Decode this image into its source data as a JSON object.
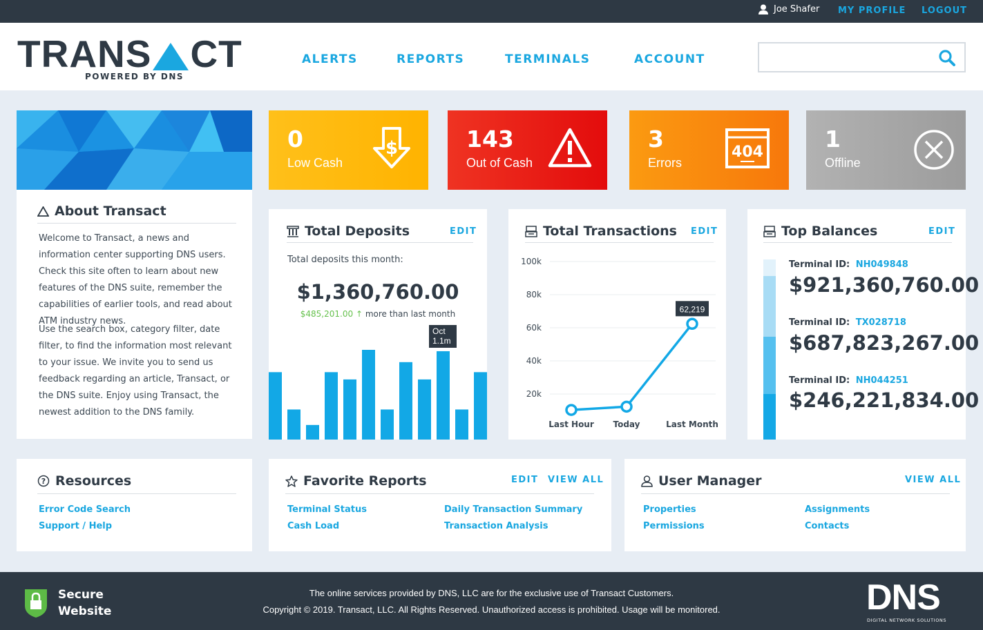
{
  "topbar": {
    "user": "Joe Shafer",
    "profile": "MY PROFILE",
    "logout": "LOGOUT"
  },
  "logo": {
    "word": "TRANSACT",
    "sub": "POWERED BY DNS"
  },
  "nav": [
    "ALERTS",
    "REPORTS",
    "TERMINALS",
    "ACCOUNT"
  ],
  "search": {
    "placeholder": ""
  },
  "stats": [
    {
      "value": "0",
      "label": "Low Cash",
      "color": "#ffbd16",
      "icon": "cash-down-icon"
    },
    {
      "value": "143",
      "label": "Out of Cash",
      "color": "#ee2a1e",
      "icon": "warning-icon"
    },
    {
      "value": "3",
      "label": "Errors",
      "color": "#f98c0e",
      "icon": "error-404-icon"
    },
    {
      "value": "1",
      "label": "Offline",
      "color": "#a6a6a6",
      "icon": "offline-x-icon"
    }
  ],
  "about": {
    "title": "About Transact",
    "p1": "Welcome to Transact, a news and information center supporting DNS users. Check this site often to learn about new features of the DNS suite, remember the capabilities of earlier tools, and read about ATM industry news.",
    "p2": "Use the search box, category filter, date filter, to find the information most relevant to your issue. We invite you to send us feedback regarding an article, Transact, or the DNS suite. Enjoy using Transact, the newest addition to the DNS family."
  },
  "deposits": {
    "title": "Total Deposits",
    "edit": "EDIT",
    "caption": "Total deposits this month:",
    "amount": "$1,360,760.00",
    "delta": "$485,201.00",
    "delta_arrow": "↑",
    "delta_text": "more than last month",
    "tooltip_month": "Oct",
    "tooltip_value": "1.1m",
    "bar_levels": [
      0.74,
      0.33,
      0.16,
      0.74,
      0.66,
      1.0,
      0.33,
      0.85,
      0.66,
      0.97,
      0.33,
      0.74
    ],
    "highlight_index": 9
  },
  "transactions": {
    "title": "Total Transactions",
    "edit": "EDIT",
    "chart_data": {
      "type": "line",
      "categories": [
        "Last Hour",
        "Today",
        "Last Month"
      ],
      "values": [
        10000,
        12000,
        62219
      ],
      "yticks": [
        "100k",
        "80k",
        "60k",
        "40k",
        "20k"
      ],
      "ylim": [
        0,
        100000
      ],
      "annotation": "62,219"
    }
  },
  "balances": {
    "title": "Top Balances",
    "edit": "EDIT",
    "items": [
      {
        "label": "Terminal ID:",
        "id": "NH049848",
        "amount": "$921,360,760.00"
      },
      {
        "label": "Terminal ID:",
        "id": "TX028718",
        "amount": "$687,823,267.00"
      },
      {
        "label": "Terminal ID:",
        "id": "NH044251",
        "amount": "$246,221,834.00"
      }
    ]
  },
  "resources": {
    "title": "Resources",
    "links": [
      "Error Code Search",
      "Support / Help"
    ]
  },
  "favorites": {
    "title": "Favorite Reports",
    "edit": "EDIT",
    "view_all": "VIEW ALL",
    "links": [
      "Terminal Status",
      "Cash Load",
      "Daily Transaction Summary",
      "Transaction Analysis"
    ]
  },
  "users": {
    "title": "User Manager",
    "view_all": "VIEW ALL",
    "links": [
      "Properties",
      "Permissions",
      "Assignments",
      "Contacts"
    ]
  },
  "footer": {
    "secure1": "Secure",
    "secure2": "Website",
    "line1": "The online services provided by DNS, LLC are for the exclusive use of Transact Customers.",
    "line2": "Copyright © 2019. Transact, LLC. All Rights Reserved. Unauthorized access is prohibited. Usage will be monitored.",
    "dns": "DNS",
    "dns_sub": "DIGITAL NETWORK SOLUTIONS"
  }
}
